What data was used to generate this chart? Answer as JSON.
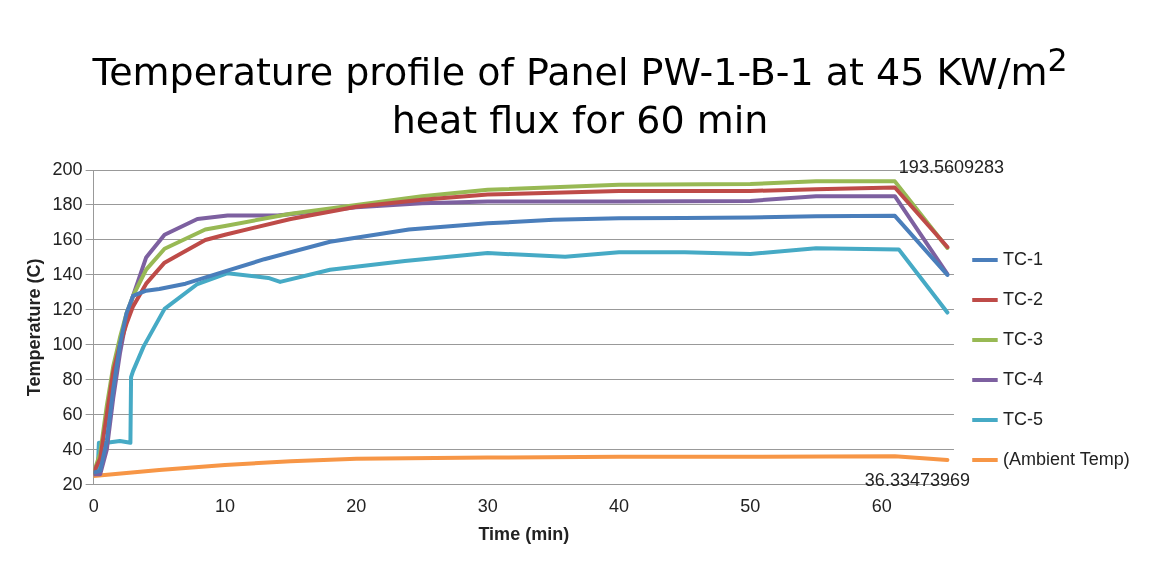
{
  "chart_data": {
    "type": "line",
    "title": "Temperature profile of Panel PW-1-B-1 at 45 KW/m$^{2}$ heat flux for 60 min",
    "xlabel": "Time (min)",
    "ylabel": "Temperature (C)",
    "xlim": [
      0,
      65.5
    ],
    "xticks": [
      0,
      10,
      20,
      30,
      40,
      50,
      60
    ],
    "ylim": [
      20,
      200
    ],
    "yticks": [
      20,
      40,
      60,
      80,
      100,
      120,
      140,
      160,
      180,
      200
    ],
    "grid": "y",
    "legend": "right",
    "marker": "none",
    "line_style": "solid",
    "annotations": [
      {
        "text": "193.5609283",
        "x": 61,
        "y": 193.5609283
      },
      {
        "text": "36.33473969",
        "x": 61,
        "y": 36.33473969
      }
    ],
    "series": [
      {
        "name": "TC-1",
        "color": "#4a7ebb",
        "x": [
          0,
          0.5,
          1,
          1.5,
          2,
          2.5,
          3,
          4,
          5,
          7,
          10,
          13,
          18,
          24,
          30,
          35,
          40,
          45,
          50,
          55,
          61,
          65
        ],
        "values": [
          27,
          28,
          45,
          75,
          100,
          118,
          128,
          131,
          132,
          135,
          142,
          149,
          159,
          166,
          169.5,
          171.5,
          172.4,
          172.5,
          172.8,
          173.5,
          173.8,
          140
        ]
      },
      {
        "name": "TC-2",
        "color": "#be4b48",
        "x": [
          0,
          0.5,
          1,
          1.5,
          2,
          2.5,
          3,
          4,
          5.4,
          8.5,
          10,
          15,
          20,
          25,
          30,
          40,
          50,
          55,
          61,
          65
        ],
        "values": [
          27,
          35,
          60,
          85,
          100,
          112,
          122,
          135,
          147,
          160,
          163,
          172,
          179,
          183,
          186,
          188,
          188,
          189,
          190,
          156
        ]
      },
      {
        "name": "TC-3",
        "color": "#98b954",
        "x": [
          0,
          0.5,
          1,
          1.5,
          2,
          2.5,
          3,
          4,
          5.4,
          8.5,
          10,
          15,
          20,
          25,
          30,
          40,
          50,
          55,
          61,
          65
        ],
        "values": [
          27,
          38,
          65,
          88,
          104,
          118,
          128,
          143,
          155,
          166,
          168,
          175,
          180,
          185,
          188.7,
          191.5,
          192,
          193.5,
          193.5,
          155.4
        ]
      },
      {
        "name": "TC-4",
        "color": "#7d60a0",
        "x": [
          0,
          0.5,
          1,
          1.5,
          2,
          2.5,
          3,
          4,
          5.4,
          7.9,
          10.2,
          14,
          20,
          25,
          30,
          40,
          50,
          55,
          61,
          65
        ],
        "values": [
          26,
          26,
          40,
          70,
          95,
          115,
          128,
          150,
          163,
          172,
          174,
          174,
          178.7,
          181,
          182,
          182,
          182.3,
          185,
          185,
          140.5
        ]
      },
      {
        "name": "TC-5",
        "color": "#46aac5",
        "x": [
          0,
          0.3,
          0.4,
          1,
          2,
          2.8,
          2.85,
          3,
          3.8,
          5.4,
          7.9,
          10.2,
          13.3,
          14.2,
          18,
          23.7,
          30,
          35.9,
          40,
          45,
          50,
          55,
          61.3,
          65
        ],
        "values": [
          27,
          27,
          44,
          44,
          45,
          44,
          81.6,
          85,
          99,
          120.6,
          134.8,
          141,
          138.3,
          136,
          143,
          148,
          152.5,
          150.4,
          153,
          153,
          152,
          155.3,
          154.6,
          118.5
        ]
      },
      {
        "name": "(Ambient Temp)",
        "color": "#f79646",
        "x": [
          0,
          5,
          10,
          15,
          20,
          30,
          40,
          50,
          61,
          65
        ],
        "values": [
          25,
          28.5,
          31.3,
          33.5,
          34.9,
          35.6,
          36,
          36,
          36.3,
          34.2
        ]
      }
    ]
  }
}
